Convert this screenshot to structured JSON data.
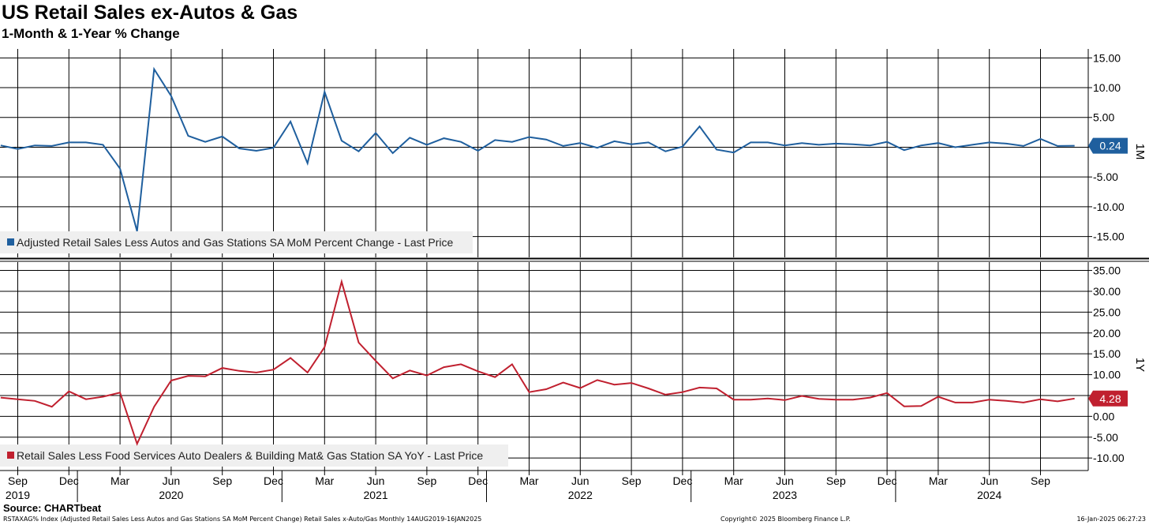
{
  "title": "US Retail Sales ex-Autos & Gas",
  "subtitle": "1-Month & 1-Year % Change",
  "source": "Source: CHARTbeat",
  "footer": {
    "left": "RSTAXAG% Index (Adjusted Retail Sales Less Autos and Gas Stations SA MoM Percent Change) Retail Sales x-Auto/Gas  Monthly 14AUG2019-16JAN2025",
    "center": "Copyright© 2025 Bloomberg Finance L.P.",
    "right": "16-Jan-2025 06:27:23"
  },
  "x_axis": {
    "ticks": [
      {
        "label": "Sep",
        "month": 0
      },
      {
        "label": "Dec",
        "month": 3
      },
      {
        "label": "Mar",
        "month": 6
      },
      {
        "label": "Jun",
        "month": 9
      },
      {
        "label": "Sep",
        "month": 12
      },
      {
        "label": "Dec",
        "month": 15
      },
      {
        "label": "Mar",
        "month": 18
      },
      {
        "label": "Jun",
        "month": 21
      },
      {
        "label": "Sep",
        "month": 24
      },
      {
        "label": "Dec",
        "month": 27
      },
      {
        "label": "Mar",
        "month": 30
      },
      {
        "label": "Jun",
        "month": 33
      },
      {
        "label": "Sep",
        "month": 36
      },
      {
        "label": "Dec",
        "month": 39
      },
      {
        "label": "Mar",
        "month": 42
      },
      {
        "label": "Jun",
        "month": 45
      },
      {
        "label": "Sep",
        "month": 48
      },
      {
        "label": "Dec",
        "month": 51
      },
      {
        "label": "Mar",
        "month": 54
      },
      {
        "label": "Jun",
        "month": 57
      },
      {
        "label": "Sep",
        "month": 60
      }
    ],
    "years": [
      {
        "label": "2019",
        "month": 0
      },
      {
        "label": "2020",
        "month": 9
      },
      {
        "label": "2021",
        "month": 21
      },
      {
        "label": "2022",
        "month": 33
      },
      {
        "label": "2023",
        "month": 45
      },
      {
        "label": "2024",
        "month": 57
      }
    ],
    "year_boundaries": [
      3.5,
      15.5,
      27.5,
      39.5,
      51.5
    ]
  },
  "chart_data": [
    {
      "type": "line",
      "panel": "top",
      "side_label": "1M",
      "legend": "Adjusted Retail Sales Less Autos and Gas Stations SA MoM Percent Change - Last Price",
      "color": "#1f5f9e",
      "last_value_label": "0.24",
      "last_value": 0.24,
      "ylim": [
        -18.5,
        16.5
      ],
      "yticks": [
        {
          "label": "15.00",
          "value": 15
        },
        {
          "label": "10.00",
          "value": 10
        },
        {
          "label": "5.00",
          "value": 5
        },
        {
          "label": "0.00",
          "value": 0,
          "show_label": false
        },
        {
          "label": "-5.00",
          "value": -5
        },
        {
          "label": "-10.00",
          "value": -10
        },
        {
          "label": "-15.00",
          "value": -15
        }
      ],
      "start_month": -1,
      "values": [
        0.3,
        -0.3,
        0.3,
        0.2,
        0.8,
        0.8,
        0.4,
        -3.6,
        -14.1,
        13.1,
        8.6,
        1.9,
        0.9,
        1.8,
        -0.2,
        -0.6,
        -0.1,
        4.3,
        -2.7,
        9.3,
        1.1,
        -0.7,
        2.4,
        -1.0,
        1.6,
        0.4,
        1.5,
        0.9,
        -0.6,
        1.2,
        0.9,
        1.7,
        1.3,
        0.2,
        0.7,
        -0.1,
        1.0,
        0.5,
        0.8,
        -0.7,
        0.1,
        3.5,
        -0.4,
        -0.9,
        0.8,
        0.8,
        0.3,
        0.7,
        0.4,
        0.6,
        0.5,
        0.3,
        0.9,
        -0.5,
        0.3,
        0.7,
        0.0,
        0.4,
        0.8,
        0.6,
        0.2,
        1.4,
        0.2,
        0.24
      ]
    },
    {
      "type": "line",
      "panel": "bottom",
      "side_label": "1Y",
      "legend": "Retail Sales Less Food Services Auto Dealers & Building Mat& Gas Station SA YoY - Last Price",
      "color": "#c0202f",
      "last_value_label": "4.28",
      "last_value": 4.28,
      "ylim": [
        -13,
        37
      ],
      "yticks": [
        {
          "label": "35.00",
          "value": 35
        },
        {
          "label": "30.00",
          "value": 30
        },
        {
          "label": "25.00",
          "value": 25
        },
        {
          "label": "20.00",
          "value": 20
        },
        {
          "label": "15.00",
          "value": 15
        },
        {
          "label": "10.00",
          "value": 10
        },
        {
          "label": "5.00",
          "value": 5
        },
        {
          "label": "0.00",
          "value": 0
        },
        {
          "label": "-5.00",
          "value": -5
        },
        {
          "label": "-10.00",
          "value": -10
        }
      ],
      "start_month": -1,
      "values": [
        4.5,
        4.1,
        3.7,
        2.3,
        6.0,
        4.1,
        4.7,
        5.7,
        -6.6,
        2.3,
        8.6,
        9.7,
        9.6,
        11.6,
        10.9,
        10.5,
        11.2,
        14.0,
        10.5,
        16.6,
        32.3,
        17.7,
        13.3,
        9.1,
        11.0,
        9.8,
        11.8,
        12.5,
        10.8,
        9.4,
        12.5,
        5.8,
        6.5,
        8.1,
        6.8,
        8.7,
        7.6,
        8.0,
        6.7,
        5.2,
        5.8,
        6.9,
        6.7,
        4.0,
        4.0,
        4.3,
        3.9,
        4.9,
        4.2,
        4.0,
        4.0,
        4.5,
        5.6,
        2.4,
        2.5,
        4.7,
        3.3,
        3.3,
        4.0,
        3.7,
        3.3,
        4.1,
        3.6,
        4.28
      ]
    }
  ]
}
